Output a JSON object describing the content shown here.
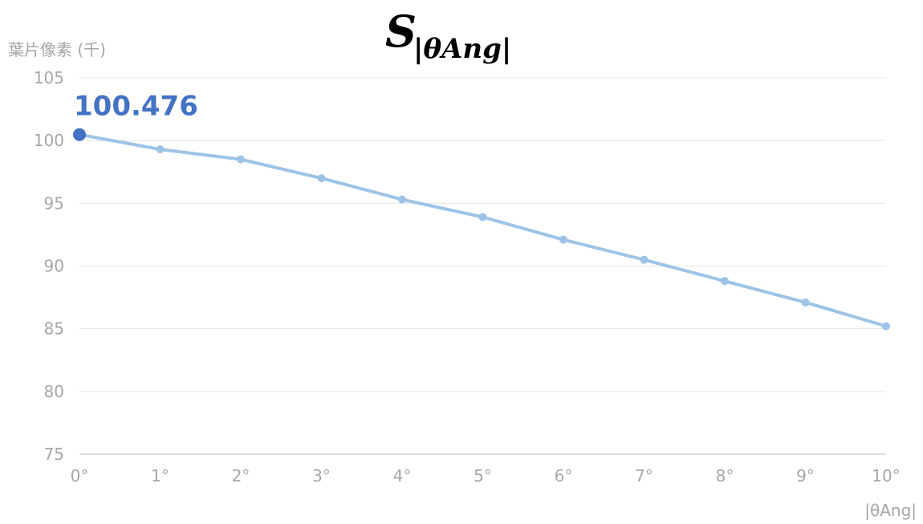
{
  "chart_data": {
    "type": "line",
    "title_main": "S",
    "title_sub": "|θAng|",
    "xlabel": "|θAng|",
    "ylabel": "葉片像素 (千)",
    "categories": [
      "0°",
      "1°",
      "2°",
      "3°",
      "4°",
      "5°",
      "6°",
      "7°",
      "8°",
      "9°",
      "10°"
    ],
    "values": [
      100.476,
      99.3,
      98.5,
      97.0,
      95.3,
      93.9,
      92.1,
      90.5,
      88.8,
      87.1,
      85.2
    ],
    "ylim": [
      75,
      105
    ],
    "yticks": [
      "75",
      "80",
      "85",
      "90",
      "95",
      "100",
      "105"
    ],
    "grid": true,
    "highlight": {
      "index": 0,
      "label": "100.476"
    },
    "colors": {
      "line": "#9dc3e6",
      "highlight": "#4472c4",
      "axis_text": "#a6a6a6",
      "grid": "#e4e4e4"
    }
  }
}
